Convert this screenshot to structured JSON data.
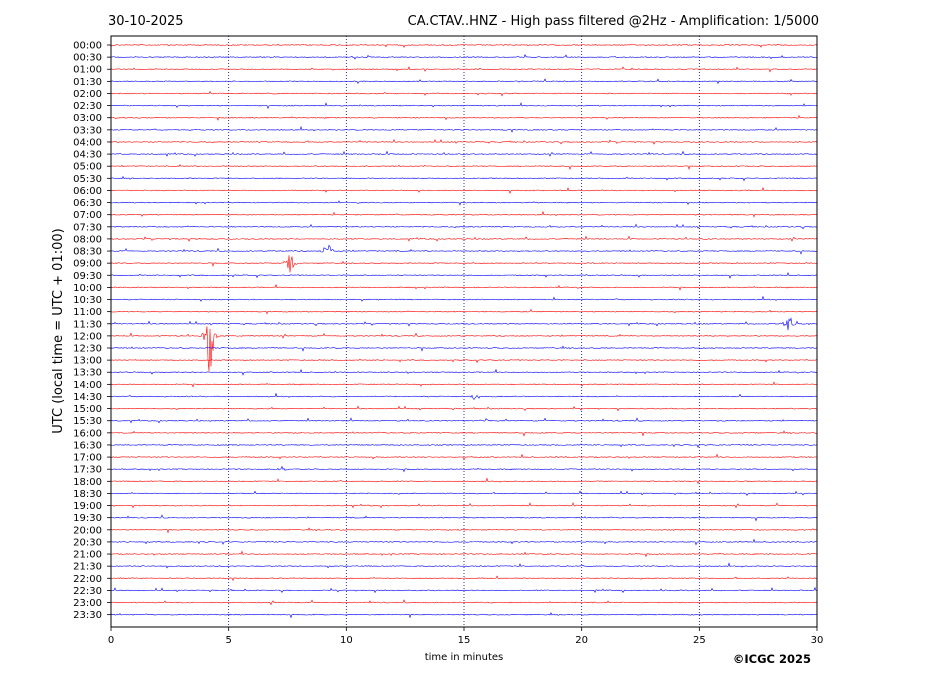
{
  "header": {
    "date": "30-10-2025",
    "title": "CA.CTAV..HNZ - High pass filtered @2Hz - Amplification: 1/5000"
  },
  "footer": {
    "copyright": "©ICGC 2025"
  },
  "chart_data": {
    "type": "line",
    "title": "CA.CTAV..HNZ - High pass filtered @2Hz - Amplification: 1/5000",
    "xlabel": "time in minutes",
    "ylabel": "UTC (local time = UTC + 01:00)",
    "xlim": [
      0,
      30
    ],
    "x_ticks": [
      0,
      5,
      10,
      15,
      20,
      25,
      30
    ],
    "grid": "vertical dotted lines at 5, 10, 15, 20, 25",
    "trace_colors": [
      "#ff0000",
      "#0000ff"
    ],
    "rows": [
      "00:00",
      "00:30",
      "01:00",
      "01:30",
      "02:00",
      "02:30",
      "03:00",
      "03:30",
      "04:00",
      "04:30",
      "05:00",
      "05:30",
      "06:00",
      "06:30",
      "07:00",
      "07:30",
      "08:00",
      "08:30",
      "09:00",
      "09:30",
      "10:00",
      "10:30",
      "11:00",
      "11:30",
      "12:00",
      "12:30",
      "13:00",
      "13:30",
      "14:00",
      "14:30",
      "15:00",
      "15:30",
      "16:00",
      "16:30",
      "17:00",
      "17:30",
      "18:00",
      "18:30",
      "19:00",
      "19:30",
      "20:00",
      "20:30",
      "21:00",
      "21:30",
      "22:00",
      "22:30",
      "23:00",
      "23:30"
    ],
    "events": [
      {
        "row": "08:30",
        "minute": 9.2,
        "amplitude": 2.8
      },
      {
        "row": "09:00",
        "minute": 7.6,
        "amplitude": 3.2
      },
      {
        "row": "12:00",
        "minute": 4.2,
        "amplitude": 9.0
      },
      {
        "row": "11:30",
        "minute": 28.8,
        "amplitude": 2.5
      },
      {
        "row": "14:30",
        "minute": 15.4,
        "amplitude": 0.6
      },
      {
        "row": "15:30",
        "minute": 15.9,
        "amplitude": 0.4
      },
      {
        "row": "17:30",
        "minute": 7.3,
        "amplitude": 0.6
      }
    ]
  }
}
